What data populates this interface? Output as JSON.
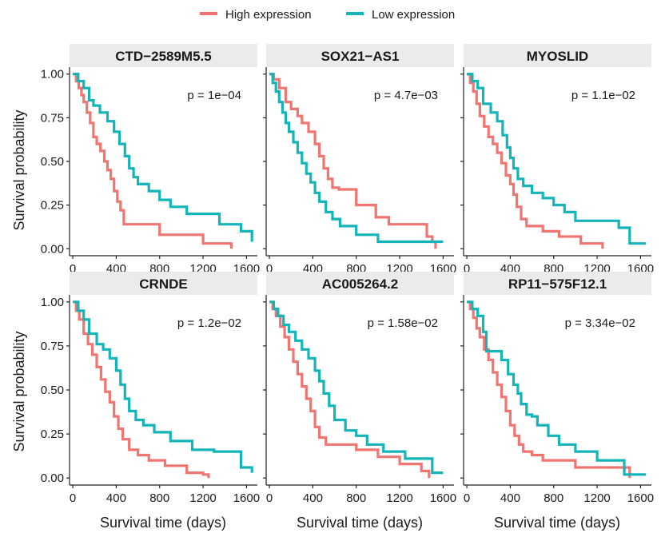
{
  "colors": {
    "high": "#f07470",
    "low": "#14b5b9",
    "strip": "#ebebeb",
    "axis": "#222222"
  },
  "chart_data": {
    "type": "line",
    "subtype": "kaplan-meier step curves, faceted 2x3",
    "legend": {
      "position": "top-center",
      "entries": [
        {
          "key": "high",
          "label": "High expression"
        },
        {
          "key": "low",
          "label": "Low expression"
        }
      ]
    },
    "xlabel": "Survival time (days)",
    "ylabel": "Survival probability",
    "xlim": [
      -30,
      1700
    ],
    "ylim": [
      -0.04,
      1.04
    ],
    "x_ticks": [
      0,
      400,
      800,
      1200,
      1600
    ],
    "x_tick_labels": [
      "0",
      "400",
      "800",
      "1200",
      "1600"
    ],
    "y_ticks": [
      0,
      0.25,
      0.5,
      0.75,
      1
    ],
    "y_tick_labels": [
      "0.00",
      "0.25",
      "0.50",
      "0.75",
      "1.00"
    ],
    "grid": false,
    "panels": [
      {
        "title": "CTD−2589M5.5",
        "p_label": "p = 1e−04",
        "series": [
          {
            "key": "high",
            "x": [
              0,
              30,
              55,
              80,
              100,
              130,
              160,
              190,
              220,
              255,
              290,
              320,
              350,
              380,
              410,
              440,
              470,
              800,
              1200,
              1460
            ],
            "y": [
              1.0,
              0.96,
              0.92,
              0.88,
              0.84,
              0.78,
              0.72,
              0.64,
              0.6,
              0.56,
              0.5,
              0.45,
              0.4,
              0.33,
              0.27,
              0.22,
              0.14,
              0.08,
              0.03,
              0.0
            ]
          },
          {
            "key": "low",
            "x": [
              0,
              50,
              100,
              150,
              190,
              250,
              320,
              380,
              430,
              480,
              520,
              560,
              600,
              700,
              800,
              900,
              1050,
              1350,
              1550,
              1650
            ],
            "y": [
              1.0,
              0.96,
              0.92,
              0.85,
              0.82,
              0.78,
              0.73,
              0.67,
              0.6,
              0.53,
              0.46,
              0.41,
              0.37,
              0.33,
              0.28,
              0.24,
              0.2,
              0.14,
              0.1,
              0.04
            ]
          }
        ]
      },
      {
        "title": "SOX21−AS1",
        "p_label": "p = 4.7e−03",
        "series": [
          {
            "key": "high",
            "x": [
              0,
              40,
              90,
              150,
              200,
              260,
              300,
              360,
              420,
              460,
              500,
              540,
              580,
              640,
              800,
              980,
              1100,
              1450,
              1500,
              1530
            ],
            "y": [
              1.0,
              0.97,
              0.92,
              0.84,
              0.8,
              0.76,
              0.72,
              0.67,
              0.6,
              0.53,
              0.46,
              0.4,
              0.35,
              0.34,
              0.25,
              0.18,
              0.14,
              0.07,
              0.04,
              0.0
            ]
          },
          {
            "key": "low",
            "x": [
              0,
              30,
              60,
              90,
              120,
              150,
              180,
              220,
              260,
              300,
              340,
              380,
              420,
              460,
              520,
              580,
              650,
              800,
              1000,
              1600
            ],
            "y": [
              1.0,
              0.95,
              0.9,
              0.84,
              0.78,
              0.72,
              0.67,
              0.61,
              0.55,
              0.49,
              0.43,
              0.38,
              0.32,
              0.27,
              0.21,
              0.17,
              0.13,
              0.08,
              0.04,
              0.04
            ]
          }
        ]
      },
      {
        "title": "MYOSLID",
        "p_label": "p = 1.1e−02",
        "series": [
          {
            "key": "high",
            "x": [
              0,
              30,
              60,
              90,
              120,
              160,
              200,
              240,
              280,
              320,
              360,
              400,
              430,
              460,
              500,
              550,
              700,
              850,
              1050,
              1250
            ],
            "y": [
              1.0,
              0.95,
              0.9,
              0.83,
              0.76,
              0.7,
              0.64,
              0.6,
              0.55,
              0.49,
              0.42,
              0.37,
              0.31,
              0.24,
              0.17,
              0.13,
              0.1,
              0.07,
              0.03,
              0.0
            ]
          },
          {
            "key": "low",
            "x": [
              0,
              50,
              100,
              150,
              220,
              280,
              330,
              370,
              400,
              430,
              470,
              520,
              600,
              700,
              800,
              900,
              1000,
              1400,
              1500,
              1650
            ],
            "y": [
              1.0,
              0.96,
              0.92,
              0.83,
              0.78,
              0.73,
              0.65,
              0.58,
              0.52,
              0.46,
              0.4,
              0.36,
              0.32,
              0.29,
              0.25,
              0.21,
              0.16,
              0.12,
              0.03,
              0.03
            ]
          }
        ]
      },
      {
        "title": "CRNDE",
        "p_label": "p = 1.2e−02",
        "series": [
          {
            "key": "high",
            "x": [
              0,
              30,
              60,
              100,
              140,
              180,
              220,
              260,
              300,
              340,
              380,
              420,
              460,
              520,
              600,
              700,
              850,
              1050,
              1200,
              1250
            ],
            "y": [
              1.0,
              0.95,
              0.9,
              0.82,
              0.76,
              0.7,
              0.63,
              0.56,
              0.49,
              0.43,
              0.35,
              0.28,
              0.22,
              0.16,
              0.13,
              0.1,
              0.07,
              0.03,
              0.02,
              0.0
            ]
          },
          {
            "key": "low",
            "x": [
              0,
              50,
              100,
              150,
              220,
              280,
              340,
              400,
              440,
              480,
              520,
              580,
              650,
              750,
              900,
              1100,
              1300,
              1500,
              1550,
              1650
            ],
            "y": [
              1.0,
              0.95,
              0.9,
              0.82,
              0.76,
              0.73,
              0.68,
              0.61,
              0.53,
              0.45,
              0.38,
              0.33,
              0.3,
              0.26,
              0.21,
              0.16,
              0.15,
              0.15,
              0.06,
              0.03
            ]
          }
        ]
      },
      {
        "title": "AC005264.2",
        "p_label": "p = 1.58e−02",
        "series": [
          {
            "key": "high",
            "x": [
              0,
              30,
              60,
              100,
              140,
              180,
              220,
              260,
              300,
              340,
              380,
              420,
              460,
              520,
              600,
              800,
              1000,
              1200,
              1400,
              1470
            ],
            "y": [
              1.0,
              0.96,
              0.92,
              0.86,
              0.8,
              0.73,
              0.66,
              0.59,
              0.52,
              0.45,
              0.38,
              0.29,
              0.23,
              0.19,
              0.19,
              0.16,
              0.12,
              0.08,
              0.04,
              0.0
            ]
          },
          {
            "key": "low",
            "x": [
              0,
              40,
              80,
              130,
              180,
              240,
              300,
              360,
              420,
              460,
              500,
              550,
              600,
              700,
              800,
              900,
              1050,
              1250,
              1500,
              1600
            ],
            "y": [
              1.0,
              0.96,
              0.92,
              0.87,
              0.83,
              0.78,
              0.73,
              0.68,
              0.61,
              0.55,
              0.48,
              0.41,
              0.33,
              0.27,
              0.24,
              0.19,
              0.15,
              0.11,
              0.03,
              0.03
            ]
          }
        ]
      },
      {
        "title": "RP11−575F12.1",
        "p_label": "p = 3.34e−02",
        "series": [
          {
            "key": "high",
            "x": [
              0,
              30,
              60,
              90,
              120,
              160,
              200,
              240,
              280,
              320,
              360,
              400,
              440,
              480,
              520,
              600,
              700,
              800,
              1000,
              1500
            ],
            "y": [
              1.0,
              0.96,
              0.91,
              0.85,
              0.8,
              0.73,
              0.67,
              0.6,
              0.53,
              0.46,
              0.38,
              0.3,
              0.24,
              0.19,
              0.15,
              0.13,
              0.1,
              0.1,
              0.06,
              0.0
            ]
          },
          {
            "key": "low",
            "x": [
              0,
              50,
              100,
              150,
              180,
              260,
              320,
              380,
              430,
              470,
              500,
              550,
              600,
              650,
              750,
              850,
              1000,
              1200,
              1450,
              1650
            ],
            "y": [
              1.0,
              0.96,
              0.92,
              0.83,
              0.72,
              0.72,
              0.67,
              0.59,
              0.53,
              0.48,
              0.42,
              0.36,
              0.35,
              0.3,
              0.24,
              0.19,
              0.15,
              0.1,
              0.02,
              0.02
            ]
          }
        ]
      }
    ]
  }
}
